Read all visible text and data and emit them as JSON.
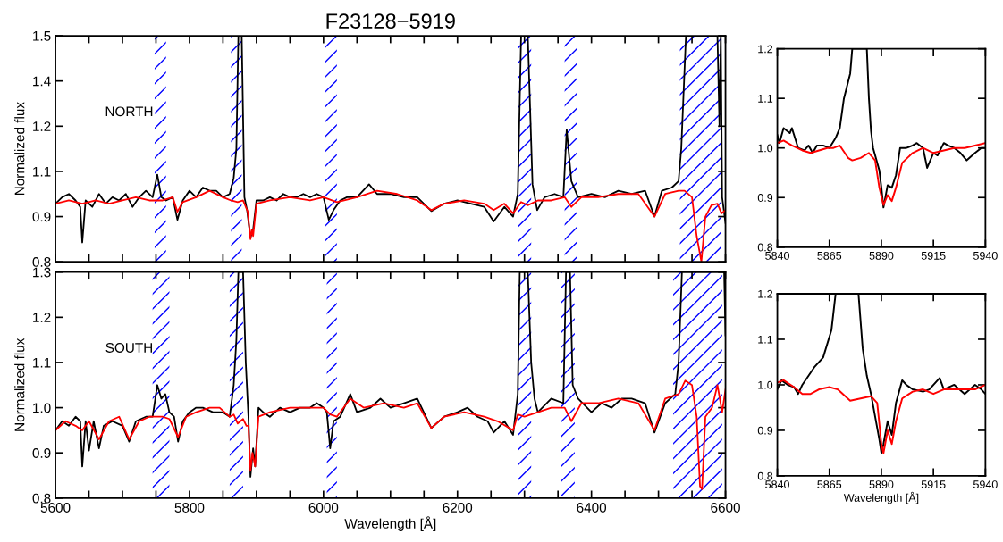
{
  "chart_data": [
    {
      "type": "line",
      "title": "F23128−5919",
      "ylabel": "Normalized flux",
      "annotations": [
        "NORTH"
      ],
      "tick_labels": "y",
      "xlim": [
        5600,
        6600
      ],
      "ylim": [
        0.8,
        1.5
      ],
      "xticks": [
        5600,
        {
          "value": 5650,
          "label": null
        },
        {
          "value": 5700,
          "label": null
        },
        {
          "value": 5750,
          "label": null
        },
        5800,
        {
          "value": 5850,
          "label": null
        },
        {
          "value": 5900,
          "label": null
        },
        {
          "value": 5950,
          "label": null
        },
        6000,
        {
          "value": 6050,
          "label": null
        },
        {
          "value": 6100,
          "label": null
        },
        {
          "value": 6150,
          "label": null
        },
        6200,
        {
          "value": 6250,
          "label": null
        },
        {
          "value": 6300,
          "label": null
        },
        {
          "value": 6350,
          "label": null
        },
        6400,
        {
          "value": 6450,
          "label": null
        },
        {
          "value": 6500,
          "label": null
        },
        {
          "value": 6550,
          "label": null
        },
        6600
      ],
      "yticks": [
        {
          "value": 0.8,
          "label": "0.8"
        },
        {
          "value": 0.94,
          "label": "0.9"
        },
        {
          "value": 1.08,
          "label": "1.1"
        },
        {
          "value": 1.22,
          "label": "1.2"
        },
        {
          "value": 1.36,
          "label": "1.4"
        },
        {
          "value": 1.5,
          "label": "1.5"
        }
      ],
      "bands": [
        {
          "axis": "x",
          "from": 5748,
          "to": 5765,
          "color": "#0000ff"
        },
        {
          "axis": "x",
          "from": 5862,
          "to": 5878,
          "color": "#0000ff"
        },
        {
          "axis": "x",
          "from": 6003,
          "to": 6020,
          "color": "#0000ff"
        },
        {
          "axis": "x",
          "from": 6290,
          "to": 6310,
          "color": "#0000ff"
        },
        {
          "axis": "x",
          "from": 6360,
          "to": 6378,
          "color": "#0000ff"
        },
        {
          "axis": "x",
          "from": 6532,
          "to": 6593,
          "color": "#0000ff"
        }
      ],
      "series": [
        {
          "color": "#000000",
          "x": [
            5600,
            5610,
            5620,
            5630,
            5637,
            5640,
            5645,
            5655,
            5665,
            5675,
            5685,
            5695,
            5705,
            5715,
            5725,
            5735,
            5745,
            5752,
            5758,
            5765,
            5775,
            5782,
            5790,
            5800,
            5810,
            5820,
            5830,
            5840,
            5850,
            5860,
            5866,
            5870,
            5873,
            5878,
            5882,
            5886,
            5891,
            5895,
            5900,
            5910,
            5920,
            5930,
            5940,
            5950,
            5960,
            5970,
            5980,
            5990,
            6000,
            6008,
            6015,
            6025,
            6035,
            6050,
            6068,
            6080,
            6100,
            6120,
            6140,
            6161,
            6180,
            6200,
            6220,
            6240,
            6254,
            6270,
            6283,
            6290,
            6295,
            6299,
            6305,
            6312,
            6319,
            6330,
            6345,
            6358,
            6363,
            6370,
            6380,
            6400,
            6420,
            6440,
            6460,
            6480,
            6494,
            6505,
            6520,
            6530,
            6534,
            6541,
            6560,
            6580,
            6588,
            6591,
            6593,
            6595,
            6600
          ],
          "values": [
            0.98,
            1.0,
            1.01,
            0.99,
            0.97,
            0.86,
            0.99,
            0.97,
            1.01,
            0.98,
            1.0,
            0.99,
            1.01,
            0.97,
            1.0,
            1.02,
            1.0,
            1.07,
            1.0,
            0.99,
            1.0,
            0.93,
            0.99,
            1.02,
            1.0,
            1.03,
            1.02,
            1.02,
            1.0,
            1.01,
            1.06,
            1.15,
            1.5,
            1.5,
            1.0,
            0.96,
            0.875,
            0.9,
            0.99,
            0.99,
            1.0,
            0.99,
            1.01,
            1.0,
            1.0,
            1.01,
            1.0,
            1.01,
            1.0,
            0.93,
            0.96,
            0.99,
            1.0,
            1.0,
            1.04,
            1.01,
            1.01,
            1.0,
            1.0,
            0.957,
            0.98,
            0.99,
            0.98,
            0.97,
            0.925,
            0.97,
            0.94,
            1.01,
            1.5,
            1.5,
            1.5,
            1.04,
            0.96,
            1.0,
            1.01,
            1.0,
            1.21,
            1.05,
            1.0,
            1.01,
            1.0,
            1.02,
            1.01,
            1.02,
            0.94,
            1.02,
            1.03,
            1.05,
            1.15,
            1.5,
            1.5,
            1.5,
            1.5,
            1.22,
            1.5,
            1.0,
            0.92
          ]
        },
        {
          "color": "#ff0000",
          "x": [
            5600,
            5620,
            5640,
            5660,
            5680,
            5700,
            5720,
            5740,
            5760,
            5775,
            5782,
            5790,
            5810,
            5830,
            5850,
            5862,
            5872,
            5880,
            5887,
            5891,
            5893,
            5895,
            5900,
            5920,
            5950,
            5980,
            6000,
            6020,
            6050,
            6080,
            6110,
            6140,
            6161,
            6180,
            6210,
            6240,
            6254,
            6270,
            6283,
            6295,
            6305,
            6320,
            6340,
            6360,
            6370,
            6385,
            6410,
            6440,
            6470,
            6494,
            6510,
            6530,
            6539,
            6550,
            6557,
            6564,
            6570,
            6579,
            6588,
            6594,
            6600
          ],
          "values": [
            0.98,
            0.99,
            0.98,
            0.99,
            0.98,
            0.99,
            1.0,
            0.99,
            0.99,
            1.0,
            0.955,
            0.985,
            1.0,
            1.02,
            1.0,
            0.99,
            0.985,
            0.99,
            0.955,
            0.87,
            0.9,
            0.88,
            0.98,
            0.99,
            1.0,
            0.99,
            1.0,
            0.985,
            1.0,
            1.02,
            1.01,
            0.99,
            0.96,
            0.98,
            0.99,
            0.98,
            0.96,
            0.98,
            0.95,
            0.985,
            0.975,
            0.99,
            0.99,
            1.0,
            0.97,
            1.0,
            1.0,
            1.01,
            1.01,
            0.94,
            1.01,
            1.02,
            1.02,
            1.0,
            0.88,
            0.8,
            0.94,
            0.975,
            0.98,
            0.95,
            0.96
          ]
        }
      ]
    },
    {
      "type": "line",
      "xlabel": "Wavelength [Å]",
      "ylabel": "Normalized flux",
      "annotations": [
        "SOUTH"
      ],
      "xlim": [
        5600,
        6600
      ],
      "ylim": [
        0.8,
        1.3
      ],
      "xticks": [
        5600,
        {
          "value": 5650,
          "label": null
        },
        {
          "value": 5700,
          "label": null
        },
        {
          "value": 5750,
          "label": null
        },
        5800,
        {
          "value": 5850,
          "label": null
        },
        {
          "value": 5900,
          "label": null
        },
        {
          "value": 5950,
          "label": null
        },
        6000,
        {
          "value": 6050,
          "label": null
        },
        {
          "value": 6100,
          "label": null
        },
        {
          "value": 6150,
          "label": null
        },
        6200,
        {
          "value": 6250,
          "label": null
        },
        {
          "value": 6300,
          "label": null
        },
        {
          "value": 6350,
          "label": null
        },
        6400,
        {
          "value": 6450,
          "label": null
        },
        {
          "value": 6500,
          "label": null
        },
        {
          "value": 6550,
          "label": null
        },
        6600
      ],
      "yticks": [
        0.8,
        0.9,
        {
          "value": 1,
          "label": "1.0"
        },
        1.1,
        1.2,
        1.3
      ],
      "bands": [
        {
          "axis": "x",
          "from": 5745,
          "to": 5770,
          "color": "#0000ff"
        },
        {
          "axis": "x",
          "from": 5860,
          "to": 5880,
          "color": "#0000ff"
        },
        {
          "axis": "x",
          "from": 6005,
          "to": 6020,
          "color": "#0000ff"
        },
        {
          "axis": "x",
          "from": 6290,
          "to": 6310,
          "color": "#0000ff"
        },
        {
          "axis": "x",
          "from": 6355,
          "to": 6375,
          "color": "#0000ff"
        },
        {
          "axis": "x",
          "from": 6522,
          "to": 6595,
          "color": "#0000ff"
        }
      ],
      "series": [
        {
          "color": "#000000",
          "x": [
            5600,
            5610,
            5620,
            5630,
            5637,
            5640,
            5645,
            5650,
            5657,
            5665,
            5672,
            5685,
            5700,
            5710,
            5720,
            5735,
            5745,
            5752,
            5758,
            5764,
            5770,
            5777,
            5783,
            5790,
            5800,
            5810,
            5820,
            5835,
            5850,
            5860,
            5866,
            5870,
            5873,
            5880,
            5884,
            5888,
            5891,
            5895,
            5898,
            5903,
            5910,
            5920,
            5935,
            5950,
            5965,
            5980,
            5990,
            6000,
            6005,
            6010,
            6015,
            6025,
            6040,
            6050,
            6070,
            6085,
            6100,
            6120,
            6140,
            6161,
            6180,
            6200,
            6215,
            6230,
            6245,
            6254,
            6270,
            6283,
            6290,
            6293,
            6305,
            6310,
            6315,
            6320,
            6340,
            6358,
            6362,
            6368,
            6372,
            6380,
            6400,
            6415,
            6430,
            6445,
            6460,
            6480,
            6494,
            6510,
            6525,
            6530,
            6535,
            6560,
            6580,
            6598,
            6600
          ],
          "values": [
            0.95,
            0.97,
            0.96,
            0.98,
            0.97,
            0.87,
            0.97,
            0.905,
            0.97,
            0.91,
            0.96,
            0.97,
            0.96,
            0.925,
            0.97,
            0.98,
            0.98,
            1.05,
            1.02,
            1.03,
            0.99,
            0.98,
            0.925,
            0.97,
            0.99,
            1.0,
            1.0,
            0.99,
            0.99,
            0.98,
            1.05,
            1.15,
            1.3,
            1.3,
            1.1,
            0.98,
            0.847,
            0.91,
            0.87,
            1.0,
            0.99,
            0.98,
            1.0,
            0.99,
            1.0,
            1.0,
            1.01,
            1.0,
            0.99,
            0.91,
            0.97,
            0.98,
            1.03,
            0.99,
            1.0,
            1.02,
            1.0,
            1.01,
            1.02,
            0.955,
            0.98,
            0.99,
            1.0,
            0.98,
            0.97,
            0.945,
            0.97,
            0.94,
            1.03,
            1.3,
            1.3,
            1.1,
            1.02,
            0.99,
            1.02,
            1.01,
            1.3,
            1.3,
            1.05,
            1.02,
            0.99,
            1.01,
            1.0,
            1.02,
            1.02,
            1.01,
            0.945,
            1.01,
            1.03,
            1.1,
            1.3,
            1.3,
            1.3,
            1.3,
            1.16
          ]
        },
        {
          "color": "#ff0000",
          "x": [
            5600,
            5615,
            5630,
            5640,
            5650,
            5665,
            5680,
            5695,
            5710,
            5725,
            5740,
            5760,
            5770,
            5783,
            5795,
            5810,
            5830,
            5845,
            5860,
            5866,
            5872,
            5880,
            5885,
            5888,
            5891,
            5894,
            5898,
            5903,
            5920,
            5950,
            5980,
            6000,
            6010,
            6020,
            6040,
            6060,
            6090,
            6120,
            6140,
            6161,
            6180,
            6210,
            6240,
            6260,
            6283,
            6290,
            6300,
            6320,
            6340,
            6360,
            6370,
            6385,
            6410,
            6440,
            6470,
            6494,
            6510,
            6530,
            6540,
            6550,
            6557,
            6562,
            6565,
            6570,
            6580,
            6588,
            6595,
            6600
          ],
          "values": [
            0.95,
            0.97,
            0.96,
            0.95,
            0.97,
            0.93,
            0.97,
            0.98,
            0.93,
            0.97,
            0.98,
            0.98,
            0.975,
            0.935,
            0.98,
            0.99,
            1.0,
            1.0,
            0.98,
            0.985,
            0.965,
            0.975,
            0.96,
            0.96,
            0.86,
            0.9,
            0.87,
            0.98,
            0.99,
            1.0,
            1.0,
            1.0,
            0.985,
            0.98,
            1.02,
            1.0,
            1.01,
            1.0,
            1.01,
            0.955,
            0.98,
            0.99,
            0.98,
            0.97,
            0.95,
            0.985,
            0.98,
            0.99,
            1.0,
            1.0,
            0.97,
            1.01,
            1.01,
            1.02,
            1.01,
            0.95,
            1.02,
            1.03,
            1.06,
            1.05,
            0.98,
            0.826,
            0.82,
            0.98,
            1.0,
            1.05,
            0.99,
            1.04
          ]
        }
      ]
    },
    {
      "type": "line",
      "xlim": [
        5840,
        5940
      ],
      "ylim": [
        0.8,
        1.2
      ],
      "xticks": [
        5840,
        5865,
        5890,
        5915,
        5940
      ],
      "yticks": [
        0.8,
        0.9,
        {
          "value": 1,
          "label": "1.0"
        },
        1.1,
        1.2
      ],
      "series": [
        {
          "color": "#000000",
          "x": [
            5840,
            5841,
            5843,
            5846,
            5847,
            5850,
            5853,
            5855,
            5857,
            5859,
            5862,
            5865,
            5868,
            5870,
            5872,
            5875,
            5876,
            5883,
            5884,
            5885,
            5886,
            5887,
            5889,
            5890,
            5891,
            5893,
            5895,
            5897,
            5899,
            5902,
            5905,
            5907,
            5910,
            5912,
            5915,
            5917,
            5920,
            5922,
            5925,
            5928,
            5931,
            5935,
            5938,
            5940
          ],
          "values": [
            1.026,
            1.01,
            1.04,
            1.03,
            1.04,
            1.0,
            0.995,
            1.005,
            0.99,
            1.005,
            1.005,
            1.0,
            1.02,
            1.04,
            1.1,
            1.15,
            1.2,
            1.2,
            1.1,
            1.035,
            1.0,
            0.985,
            0.955,
            0.92,
            0.88,
            0.925,
            0.92,
            0.945,
            1.0,
            1.0,
            1.005,
            1.01,
            1.0,
            0.96,
            0.99,
            0.985,
            1.01,
            1.005,
            1.0,
            0.99,
            0.975,
            0.99,
            1.0,
            1.0
          ]
        },
        {
          "color": "#ff0000",
          "x": [
            5840,
            5843,
            5847,
            5852,
            5856,
            5860,
            5864,
            5867,
            5870,
            5874,
            5876,
            5880,
            5884,
            5887,
            5889,
            5891,
            5893,
            5895,
            5897,
            5900,
            5905,
            5910,
            5915,
            5920,
            5925,
            5930,
            5935,
            5940
          ],
          "values": [
            1.01,
            1.015,
            1.005,
            0.995,
            0.99,
            0.995,
            1.0,
            1.0,
            1.005,
            0.98,
            0.975,
            0.98,
            0.99,
            0.975,
            0.92,
            0.885,
            0.905,
            0.893,
            0.92,
            0.97,
            0.99,
            1.0,
            0.99,
            0.995,
            1.0,
            1.0,
            1.005,
            1.01
          ]
        }
      ]
    },
    {
      "type": "line",
      "xlabel": "Wavelength [Å]",
      "xlim": [
        5840,
        5940
      ],
      "ylim": [
        0.8,
        1.2
      ],
      "xticks": [
        5840,
        5865,
        5890,
        5915,
        5940
      ],
      "yticks": [
        0.8,
        0.9,
        {
          "value": 1,
          "label": "1.0"
        },
        1.1,
        1.2
      ],
      "series": [
        {
          "color": "#000000",
          "x": [
            5840,
            5842,
            5845,
            5848,
            5850,
            5852,
            5855,
            5858,
            5862,
            5866,
            5868,
            5879,
            5881,
            5883,
            5885,
            5887,
            5889,
            5890,
            5891,
            5893,
            5895,
            5897,
            5900,
            5902,
            5905,
            5910,
            5913,
            5918,
            5920,
            5925,
            5930,
            5935,
            5938,
            5940
          ],
          "values": [
            0.99,
            1.01,
            1.0,
            0.995,
            0.98,
            1.0,
            1.02,
            1.04,
            1.06,
            1.12,
            1.2,
            1.2,
            1.08,
            1.02,
            0.98,
            0.93,
            0.88,
            0.85,
            0.87,
            0.92,
            0.89,
            0.96,
            1.01,
            1.0,
            0.99,
            0.985,
            0.99,
            1.015,
            0.99,
            1.0,
            0.98,
            1.0,
            0.99,
            0.98
          ]
        },
        {
          "color": "#ff0000",
          "x": [
            5840,
            5843,
            5848,
            5852,
            5856,
            5860,
            5865,
            5869,
            5875,
            5880,
            5885,
            5888,
            5890,
            5891,
            5893,
            5895,
            5897,
            5900,
            5905,
            5910,
            5915,
            5920,
            5925,
            5930,
            5935,
            5940
          ],
          "values": [
            1.005,
            1.01,
            0.995,
            0.98,
            0.98,
            0.99,
            0.995,
            0.99,
            0.965,
            0.97,
            0.975,
            0.96,
            0.87,
            0.85,
            0.9,
            0.87,
            0.92,
            0.97,
            0.985,
            0.99,
            0.98,
            0.99,
            0.99,
            0.99,
            0.99,
            1.0
          ]
        }
      ]
    }
  ]
}
